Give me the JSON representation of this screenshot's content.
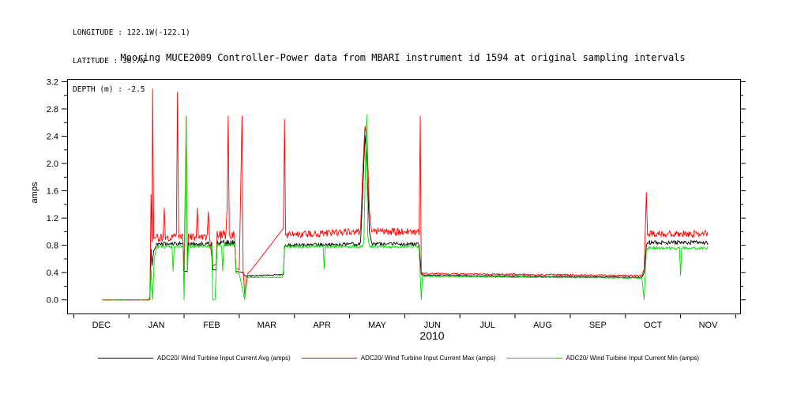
{
  "meta": {
    "longitude_line": "LONGITUDE : 122.1W(-122.1)",
    "latitude_line": "LATITUDE : 36.7N",
    "depth_line": "DEPTH (m) : -2.5"
  },
  "chart_data": {
    "type": "line",
    "title": "Mooring MUCE2009 Controller-Power data from MBARI instrument id 1594 at original sampling intervals",
    "ylabel": "amps",
    "year_label": "2010",
    "ylim": [
      -0.2,
      3.24
    ],
    "yticks": [
      0.0,
      0.4,
      0.8,
      1.2,
      1.6,
      2.0,
      2.4,
      2.8,
      3.2
    ],
    "x_domain": [
      -0.62,
      11.58
    ],
    "xtick_labels": [
      "DEC",
      "JAN",
      "FEB",
      "MAR",
      "APR",
      "MAY",
      "JUN",
      "JUL",
      "AUG",
      "SEP",
      "OCT",
      "NOV"
    ],
    "grid": false,
    "legend_position": "bottom",
    "axis_color": "#000000",
    "series": [
      {
        "name": "ADC20/ Wind Turbine Input Current Avg (amps)",
        "color": "#000000",
        "segments": [
          {
            "t": "n",
            "x0": 0.02,
            "x1": 0.86,
            "y0": 0.0,
            "y1": 0.0,
            "a": 0.003
          },
          {
            "t": "p",
            "p": [
              [
                0.88,
                0.02
              ],
              [
                0.9,
                0.75
              ],
              [
                0.92,
                0.5
              ],
              [
                0.95,
                0.72
              ],
              [
                1.0,
                0.8
              ]
            ]
          },
          {
            "t": "n",
            "x0": 1.0,
            "x1": 1.48,
            "y0": 0.82,
            "y1": 0.82,
            "a": 0.03
          },
          {
            "t": "p",
            "p": [
              [
                1.5,
                0.42
              ],
              [
                1.56,
                0.42
              ]
            ]
          },
          {
            "t": "n",
            "x0": 1.58,
            "x1": 2.0,
            "y0": 0.82,
            "y1": 0.82,
            "a": 0.03
          },
          {
            "t": "p",
            "p": [
              [
                2.02,
                0.44
              ],
              [
                2.08,
                0.44
              ]
            ]
          },
          {
            "t": "n",
            "x0": 2.1,
            "x1": 2.42,
            "y0": 0.84,
            "y1": 0.84,
            "a": 0.04
          },
          {
            "t": "p",
            "p": [
              [
                2.44,
                0.42
              ],
              [
                2.56,
                0.4
              ],
              [
                2.6,
                0.36
              ]
            ]
          },
          {
            "t": "n",
            "x0": 2.62,
            "x1": 3.3,
            "y0": 0.35,
            "y1": 0.37,
            "a": 0.008
          },
          {
            "t": "p",
            "p": [
              [
                3.32,
                0.78
              ]
            ]
          },
          {
            "t": "n",
            "x0": 3.34,
            "x1": 4.68,
            "y0": 0.8,
            "y1": 0.82,
            "a": 0.025
          },
          {
            "t": "p",
            "p": [
              [
                4.7,
                0.85
              ],
              [
                4.74,
                1.6
              ],
              [
                4.78,
                2.42
              ],
              [
                4.82,
                1.9
              ],
              [
                4.86,
                1.0
              ],
              [
                4.9,
                0.84
              ]
            ]
          },
          {
            "t": "n",
            "x0": 4.92,
            "x1": 5.74,
            "y0": 0.82,
            "y1": 0.82,
            "a": 0.025
          },
          {
            "t": "p",
            "p": [
              [
                5.76,
                0.8
              ],
              [
                5.8,
                0.38
              ]
            ]
          },
          {
            "t": "n",
            "x0": 5.82,
            "x1": 9.8,
            "y0": 0.36,
            "y1": 0.33,
            "a": 0.008
          },
          {
            "t": "p",
            "p": [
              [
                9.84,
                0.4
              ],
              [
                9.88,
                0.8
              ]
            ]
          },
          {
            "t": "n",
            "x0": 9.9,
            "x1": 11.0,
            "y0": 0.84,
            "y1": 0.84,
            "a": 0.03
          }
        ]
      },
      {
        "name": "ADC20/ Wind Turbine Input Current Max (amps)",
        "color": "#ff0000",
        "segments": [
          {
            "t": "n",
            "x0": 0.02,
            "x1": 0.86,
            "y0": 0.0,
            "y1": 0.0,
            "a": 0.004
          },
          {
            "t": "p",
            "p": [
              [
                0.88,
                0.05
              ],
              [
                0.9,
                1.55
              ],
              [
                0.92,
                0.85
              ],
              [
                0.93,
                3.1
              ],
              [
                0.95,
                0.9
              ],
              [
                1.0,
                0.92
              ]
            ]
          },
          {
            "t": "n",
            "x0": 1.0,
            "x1": 1.12,
            "y0": 0.92,
            "y1": 0.92,
            "a": 0.06
          },
          {
            "t": "p",
            "p": [
              [
                1.14,
                1.35
              ],
              [
                1.16,
                0.92
              ]
            ]
          },
          {
            "t": "n",
            "x0": 1.16,
            "x1": 1.36,
            "y0": 0.92,
            "y1": 0.92,
            "a": 0.06
          },
          {
            "t": "p",
            "p": [
              [
                1.38,
                3.05
              ],
              [
                1.4,
                0.92
              ]
            ]
          },
          {
            "t": "n",
            "x0": 1.4,
            "x1": 1.48,
            "y0": 0.92,
            "y1": 0.92,
            "a": 0.06
          },
          {
            "t": "p",
            "p": [
              [
                1.5,
                0.48
              ],
              [
                1.54,
                2.7
              ],
              [
                1.56,
                0.5
              ]
            ]
          },
          {
            "t": "n",
            "x0": 1.58,
            "x1": 1.72,
            "y0": 0.92,
            "y1": 0.92,
            "a": 0.06
          },
          {
            "t": "p",
            "p": [
              [
                1.74,
                1.35
              ],
              [
                1.76,
                0.92
              ]
            ]
          },
          {
            "t": "n",
            "x0": 1.76,
            "x1": 1.92,
            "y0": 0.92,
            "y1": 0.92,
            "a": 0.06
          },
          {
            "t": "p",
            "p": [
              [
                1.94,
                1.3
              ],
              [
                1.96,
                0.92
              ],
              [
                2.02,
                0.5
              ],
              [
                2.08,
                0.52
              ]
            ]
          },
          {
            "t": "n",
            "x0": 2.1,
            "x1": 2.26,
            "y0": 0.95,
            "y1": 0.95,
            "a": 0.07
          },
          {
            "t": "p",
            "p": [
              [
                2.28,
                1.35
              ],
              [
                2.3,
                2.7
              ],
              [
                2.32,
                0.95
              ]
            ]
          },
          {
            "t": "n",
            "x0": 2.34,
            "x1": 2.42,
            "y0": 0.95,
            "y1": 0.95,
            "a": 0.07
          },
          {
            "t": "p",
            "p": [
              [
                2.44,
                0.46
              ],
              [
                2.5,
                0.44
              ],
              [
                2.55,
                2.7
              ],
              [
                2.57,
                0.45
              ],
              [
                2.6,
                0.06
              ],
              [
                2.66,
                0.4
              ],
              [
                2.7,
                0.42
              ],
              [
                3.3,
                1.05
              ],
              [
                3.32,
                2.65
              ],
              [
                3.34,
                0.95
              ]
            ]
          },
          {
            "t": "n",
            "x0": 3.36,
            "x1": 4.68,
            "y0": 0.95,
            "y1": 1.0,
            "a": 0.05
          },
          {
            "t": "p",
            "p": [
              [
                4.7,
                1.05
              ],
              [
                4.74,
                1.9
              ],
              [
                4.78,
                2.55
              ],
              [
                4.82,
                2.3
              ],
              [
                4.86,
                1.3
              ],
              [
                4.9,
                1.0
              ]
            ]
          },
          {
            "t": "n",
            "x0": 4.92,
            "x1": 5.74,
            "y0": 1.0,
            "y1": 1.0,
            "a": 0.05
          },
          {
            "t": "p",
            "p": [
              [
                5.76,
                0.95
              ],
              [
                5.78,
                2.7
              ],
              [
                5.8,
                0.42
              ]
            ]
          },
          {
            "t": "n",
            "x0": 5.82,
            "x1": 9.8,
            "y0": 0.385,
            "y1": 0.355,
            "a": 0.012
          },
          {
            "t": "p",
            "p": [
              [
                9.84,
                0.45
              ],
              [
                9.88,
                1.58
              ],
              [
                9.9,
                0.95
              ]
            ]
          },
          {
            "t": "n",
            "x0": 9.92,
            "x1": 11.0,
            "y0": 0.97,
            "y1": 0.97,
            "a": 0.05
          }
        ]
      },
      {
        "name": "ADC20/ Wind Turbine Input Current Min (amps)",
        "color": "#00dd00",
        "segments": [
          {
            "t": "n",
            "x0": 0.02,
            "x1": 0.86,
            "y0": 0.0,
            "y1": 0.0,
            "a": 0.003
          },
          {
            "t": "p",
            "p": [
              [
                0.88,
                0.0
              ],
              [
                0.9,
                0.45
              ],
              [
                0.93,
                0.0
              ],
              [
                0.96,
                0.6
              ],
              [
                1.0,
                0.76
              ]
            ]
          },
          {
            "t": "n",
            "x0": 1.0,
            "x1": 1.28,
            "y0": 0.78,
            "y1": 0.78,
            "a": 0.025
          },
          {
            "t": "p",
            "p": [
              [
                1.3,
                0.42
              ],
              [
                1.32,
                0.78
              ]
            ]
          },
          {
            "t": "n",
            "x0": 1.32,
            "x1": 1.48,
            "y0": 0.78,
            "y1": 0.78,
            "a": 0.025
          },
          {
            "t": "p",
            "p": [
              [
                1.5,
                0.0
              ],
              [
                1.54,
                2.7
              ],
              [
                1.56,
                0.4
              ]
            ]
          },
          {
            "t": "n",
            "x0": 1.58,
            "x1": 2.0,
            "y0": 0.78,
            "y1": 0.78,
            "a": 0.025
          },
          {
            "t": "p",
            "p": [
              [
                2.02,
                0.0
              ],
              [
                2.06,
                0.0
              ],
              [
                2.08,
                0.4
              ]
            ]
          },
          {
            "t": "n",
            "x0": 2.1,
            "x1": 2.18,
            "y0": 0.8,
            "y1": 0.8,
            "a": 0.03
          },
          {
            "t": "p",
            "p": [
              [
                2.2,
                0.42
              ],
              [
                2.22,
                0.8
              ]
            ]
          },
          {
            "t": "n",
            "x0": 2.22,
            "x1": 2.42,
            "y0": 0.8,
            "y1": 0.8,
            "a": 0.03
          },
          {
            "t": "p",
            "p": [
              [
                2.44,
                0.4
              ],
              [
                2.5,
                0.38
              ],
              [
                2.6,
                0.0
              ],
              [
                2.62,
                0.33
              ]
            ]
          },
          {
            "t": "n",
            "x0": 2.64,
            "x1": 3.28,
            "y0": 0.33,
            "y1": 0.33,
            "a": 0.006
          },
          {
            "t": "p",
            "p": [
              [
                3.3,
                0.42
              ],
              [
                3.32,
                0.75
              ]
            ]
          },
          {
            "t": "n",
            "x0": 3.34,
            "x1": 4.02,
            "y0": 0.78,
            "y1": 0.78,
            "a": 0.02
          },
          {
            "t": "p",
            "p": [
              [
                4.04,
                0.45
              ],
              [
                4.06,
                0.78
              ]
            ]
          },
          {
            "t": "n",
            "x0": 4.06,
            "x1": 4.74,
            "y0": 0.78,
            "y1": 0.78,
            "a": 0.02
          },
          {
            "t": "p",
            "p": [
              [
                4.76,
                0.85
              ],
              [
                4.79,
                2.05
              ],
              [
                4.81,
                2.72
              ],
              [
                4.83,
                0.95
              ],
              [
                4.86,
                0.78
              ]
            ]
          },
          {
            "t": "n",
            "x0": 4.88,
            "x1": 5.74,
            "y0": 0.78,
            "y1": 0.78,
            "a": 0.02
          },
          {
            "t": "p",
            "p": [
              [
                5.76,
                0.75
              ],
              [
                5.8,
                0.0
              ],
              [
                5.82,
                0.33
              ]
            ]
          },
          {
            "t": "n",
            "x0": 5.84,
            "x1": 9.8,
            "y0": 0.345,
            "y1": 0.32,
            "a": 0.008
          },
          {
            "t": "p",
            "p": [
              [
                9.84,
                0.0
              ],
              [
                9.86,
                0.38
              ],
              [
                9.88,
                0.72
              ]
            ]
          },
          {
            "t": "n",
            "x0": 9.9,
            "x1": 10.48,
            "y0": 0.76,
            "y1": 0.76,
            "a": 0.02
          },
          {
            "t": "p",
            "p": [
              [
                10.5,
                0.35
              ],
              [
                10.52,
                0.76
              ]
            ]
          },
          {
            "t": "n",
            "x0": 10.52,
            "x1": 11.0,
            "y0": 0.76,
            "y1": 0.76,
            "a": 0.02
          }
        ]
      }
    ]
  }
}
